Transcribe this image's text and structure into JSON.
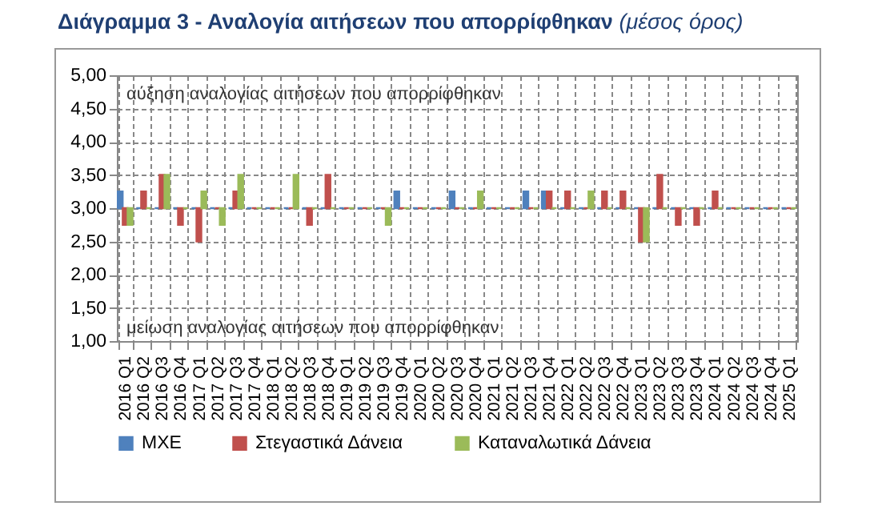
{
  "chart_data": {
    "type": "bar",
    "title": "Διάγραμμα 3 - Αναλογία αιτήσεων που απορρίφθηκαν",
    "subtitle": "(μέσος όρος)",
    "categories": [
      "2016 Q1",
      "2016 Q2",
      "2016 Q3",
      "2016 Q4",
      "2017 Q1",
      "2017 Q2",
      "2017 Q3",
      "2017 Q4",
      "2018 Q1",
      "2018 Q2",
      "2018 Q3",
      "2018 Q4",
      "2019 Q1",
      "2019 Q2",
      "2019 Q3",
      "2019 Q4",
      "2020 Q1",
      "2020 Q2",
      "2020 Q3",
      "2020 Q4",
      "2021 Q1",
      "2021 Q2",
      "2021 Q3",
      "2021 Q4",
      "2022 Q1",
      "2022 Q2",
      "2022 Q3",
      "2022 Q4",
      "2023 Q1",
      "2023 Q2",
      "2023 Q3",
      "2023 Q4",
      "2024 Q1",
      "2024 Q2",
      "2024 Q3",
      "2024 Q4",
      "2025 Q1"
    ],
    "series": [
      {
        "name": "ΜΧΕ",
        "color": "#4f81bd",
        "base": [
          3,
          3,
          3,
          3,
          3,
          3,
          3,
          3,
          3,
          3,
          3,
          3,
          3,
          3,
          3,
          3,
          3,
          3,
          3,
          3,
          3,
          3,
          3,
          3,
          3,
          3,
          3,
          3,
          3,
          3,
          3,
          3,
          3,
          3,
          3,
          3,
          3
        ],
        "values": [
          0.25,
          0,
          0,
          0,
          0,
          0,
          0,
          0,
          0,
          0,
          0,
          0,
          0,
          0,
          0,
          0.25,
          0,
          0,
          0.25,
          0,
          0,
          0,
          0.25,
          0.25,
          0,
          0,
          0,
          0,
          0,
          0,
          0,
          0,
          0,
          0,
          0,
          0,
          0
        ]
      },
      {
        "name": "Στεγαστικά Δάνεια",
        "color": "#c0504d",
        "base": [
          3,
          3,
          3,
          3,
          3,
          3,
          3,
          3,
          3,
          3,
          3,
          3,
          3,
          3,
          3,
          3,
          3,
          3,
          3,
          3,
          3,
          3,
          3,
          3,
          3,
          3,
          3,
          3,
          3,
          3,
          3,
          3,
          3,
          3,
          3,
          3,
          3
        ],
        "values": [
          -0.25,
          0.25,
          0.5,
          -0.25,
          -0.5,
          0,
          0.25,
          0,
          0,
          0,
          -0.25,
          0.5,
          0,
          0,
          0,
          0,
          0,
          0,
          0,
          0,
          0,
          0,
          0,
          0.25,
          0.25,
          0,
          0.25,
          0.25,
          -0.5,
          0.5,
          -0.25,
          -0.25,
          0.25,
          0,
          0,
          0,
          0
        ]
      },
      {
        "name": "Καταναλωτικά Δάνεια",
        "color": "#9bbb59",
        "base": [
          3,
          3,
          3,
          3,
          3,
          3,
          3,
          3,
          3,
          3,
          3,
          3,
          3,
          3,
          3,
          3,
          3,
          3,
          3,
          3,
          3,
          3,
          3,
          3,
          3,
          3,
          3,
          3,
          3,
          3,
          3,
          3,
          3,
          3,
          3,
          3,
          3
        ],
        "values": [
          -0.25,
          0,
          0.5,
          0,
          0.25,
          -0.25,
          0.5,
          0,
          0,
          0.5,
          0,
          0,
          0,
          0,
          -0.25,
          0,
          0,
          0,
          0,
          0.25,
          0,
          0,
          0,
          0,
          0,
          0.25,
          0,
          0,
          -0.5,
          0,
          0,
          0,
          0,
          0,
          0,
          0,
          0
        ]
      }
    ],
    "ylim": [
      1,
      5
    ],
    "yticks": [
      {
        "value": 1,
        "label": "1,00"
      },
      {
        "value": 1.5,
        "label": "1,50"
      },
      {
        "value": 2,
        "label": "2,00"
      },
      {
        "value": 2.5,
        "label": "2,50"
      },
      {
        "value": 3,
        "label": "3,00"
      },
      {
        "value": 3.5,
        "label": "3,50"
      },
      {
        "value": 4,
        "label": "4,00"
      },
      {
        "value": 4.5,
        "label": "4,50"
      },
      {
        "value": 5,
        "label": "5,00"
      }
    ],
    "annotations": [
      "αύξηση αναλογίας αιτήσεων που απορρίφθηκαν",
      "μείωση αναλογίας αιτήσεων που απορρίφθηκαν"
    ],
    "grid": true,
    "legend": "bottom"
  }
}
